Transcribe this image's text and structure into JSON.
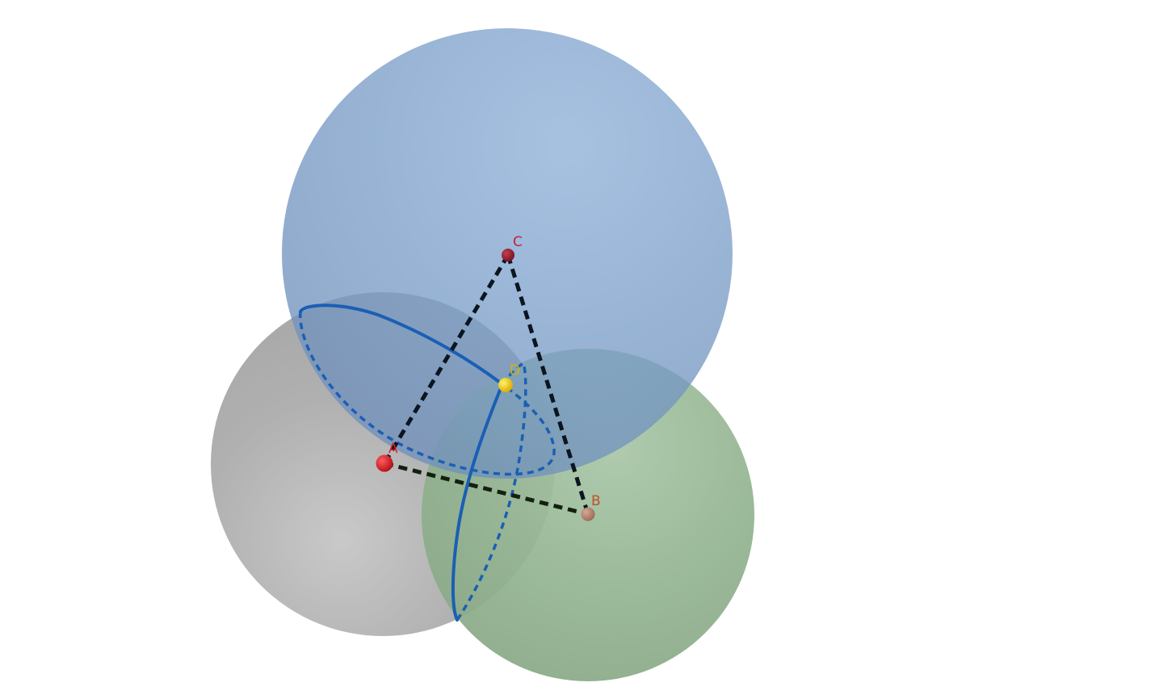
{
  "colors": {
    "background": "#ffffff",
    "sphere_a": "#9a9a9a",
    "sphere_b": "#82aa82",
    "sphere_c": "#6a92c6",
    "edge": "#0b1520",
    "edge_ab": "#14200f",
    "circle": "#1a5fb4",
    "point_a": "#c1121f",
    "point_b": "#b07a66",
    "point_c": "#8c1c2c",
    "point_d": "#f2c200",
    "label_a": "#e0202a",
    "label_b": "#c0502a",
    "label_c": "#c02040",
    "label_d": "#d4b400"
  },
  "points": {
    "a": {
      "label": "A"
    },
    "b": {
      "label": "B"
    },
    "c": {
      "label": "C"
    },
    "d": {
      "label": "D"
    }
  },
  "spheres": [
    {
      "center": "A",
      "color_key": "sphere_a"
    },
    {
      "center": "B",
      "color_key": "sphere_b"
    },
    {
      "center": "C",
      "color_key": "sphere_c"
    }
  ],
  "segments": [
    "CA",
    "CB",
    "AB"
  ],
  "intersection_circles": [
    {
      "spheres": [
        "A",
        "C"
      ],
      "passes_through": "D"
    },
    {
      "spheres": [
        "A",
        "B"
      ],
      "passes_through": "D"
    }
  ]
}
